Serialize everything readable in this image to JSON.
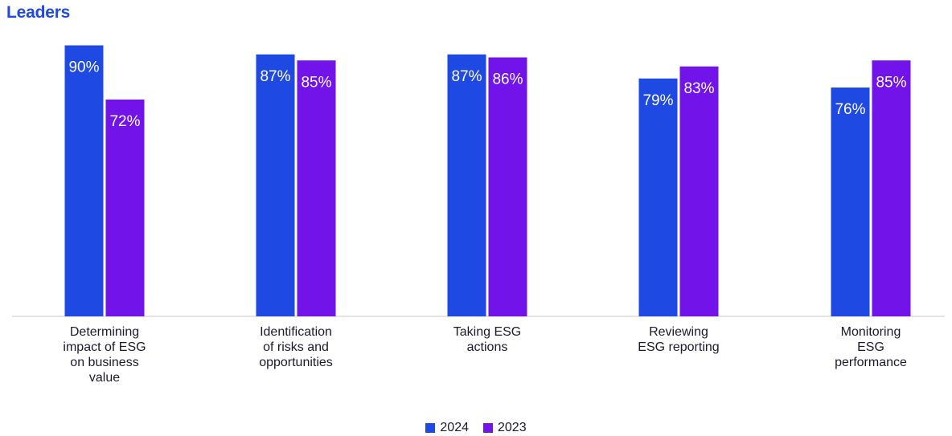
{
  "chart_data": {
    "type": "bar",
    "title": "Leaders",
    "categories": [
      [
        "Determining",
        "impact of ESG",
        "on business",
        "value"
      ],
      [
        "Identification",
        "of risks and",
        "opportunities"
      ],
      [
        "Taking ESG",
        "actions"
      ],
      [
        "Reviewing",
        "ESG reporting"
      ],
      [
        "Monitoring",
        "ESG",
        "performance"
      ]
    ],
    "series": [
      {
        "name": "2024",
        "color": "#1e49e2",
        "values": [
          90,
          87,
          87,
          79,
          76
        ]
      },
      {
        "name": "2023",
        "color": "#7213ea",
        "values": [
          72,
          85,
          86,
          83,
          85
        ]
      }
    ],
    "value_suffix": "%",
    "ylim": [
      0,
      100
    ],
    "grid": false,
    "legend_position": "bottom-center"
  }
}
